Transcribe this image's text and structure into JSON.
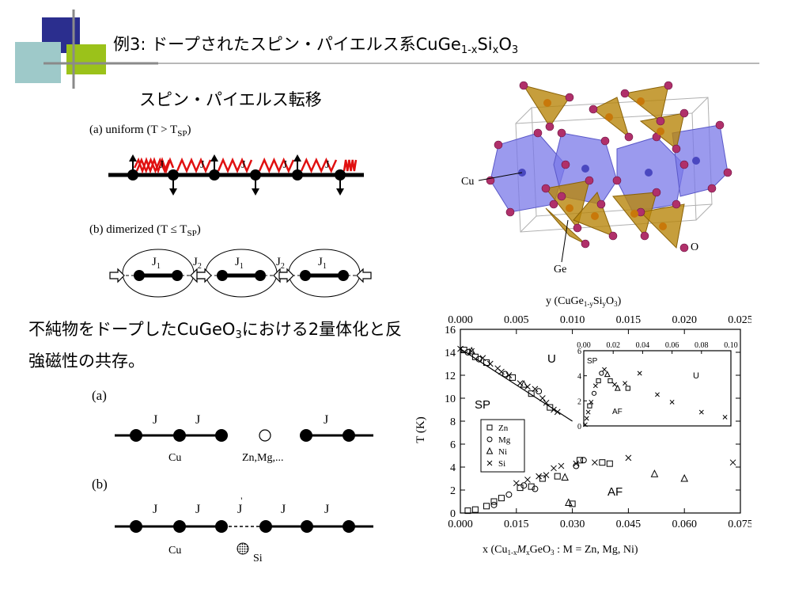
{
  "slide": {
    "title_main": "例3: ドープされたスピン・パイエルス系CuGe",
    "title_sub1": "1-x",
    "title_si": "Si",
    "title_sub2": "x",
    "title_o": "O",
    "title_sub3": "3",
    "subtitle": "スピン・パイエルス転移",
    "para_part1": "不純物をドープしたCuGeO",
    "para_sub": "3",
    "para_part2": "における2量体化と反強磁性の共存。",
    "accent_blue": "#2b2e8e",
    "accent_green": "#9bc21a",
    "accent_teal": "#9ec9c9"
  },
  "chain_diagram": {
    "panel_a_label": "(a) uniform (T > T",
    "panel_a_sub": "SP",
    "panel_a_close": ")",
    "panel_b_label": "(b) dimerized (T ≤ T",
    "panel_b_sub": "SP",
    "panel_b_close": ")",
    "j_label": "J",
    "j1": "J",
    "j1_sub": "1",
    "j2": "J",
    "j2_sub": "2"
  },
  "crystal": {
    "label_cu": "Cu",
    "label_ge": "Ge",
    "label_o": "O"
  },
  "impurity_diagram": {
    "panel_a": "(a)",
    "panel_b": "(b)",
    "j": "J",
    "j_prime": "J",
    "prime": "'",
    "cu": "Cu",
    "zn": "Zn,Mg,...",
    "si": "Si"
  },
  "chart_data": {
    "type": "scatter",
    "xlabel": "x (Cu",
    "xlabel_sub1": "1-x",
    "xlabel_m": "M",
    "xlabel_sub2": "x",
    "xlabel_rest": "GeO",
    "xlabel_sub3": "3",
    "xlabel_tail": " :  M = Zn, Mg, Ni)",
    "ylabel": "T (K)",
    "top_axis_label": "y  (CuGe",
    "top_axis_sub1": "1-y",
    "top_axis_si": "Si",
    "top_axis_sub2": "y",
    "top_axis_o": "O",
    "top_axis_sub3": "3",
    "top_axis_close": ")",
    "xlim": [
      0,
      0.075
    ],
    "ylim": [
      0,
      16
    ],
    "top_xlim": [
      0,
      0.025
    ],
    "x_ticks": [
      "0.000",
      "0.015",
      "0.030",
      "0.045",
      "0.060",
      "0.075"
    ],
    "y_ticks": [
      "0",
      "2",
      "4",
      "6",
      "8",
      "10",
      "12",
      "14",
      "16"
    ],
    "top_ticks": [
      "0.000",
      "0.005",
      "0.010",
      "0.015",
      "0.020",
      "0.025"
    ],
    "region_labels": [
      "U",
      "SP",
      "AF"
    ],
    "legend": [
      "Zn",
      "Mg",
      "Ni",
      "Si"
    ],
    "series": [
      {
        "name": "Zn",
        "marker": "square",
        "points": [
          [
            0.001,
            14.2
          ],
          [
            0.004,
            13.6
          ],
          [
            0.007,
            13.1
          ],
          [
            0.014,
            11.8
          ],
          [
            0.019,
            10.4
          ],
          [
            0.024,
            9.2
          ],
          [
            0.002,
            0.2
          ],
          [
            0.004,
            0.3
          ],
          [
            0.007,
            0.6
          ],
          [
            0.009,
            1.0
          ],
          [
            0.011,
            1.3
          ],
          [
            0.016,
            2.2
          ],
          [
            0.019,
            2.3
          ],
          [
            0.022,
            3.0
          ],
          [
            0.026,
            3.2
          ],
          [
            0.032,
            4.6
          ],
          [
            0.038,
            4.4
          ],
          [
            0.04,
            4.3
          ],
          [
            0.03,
            0.8
          ]
        ]
      },
      {
        "name": "Mg",
        "marker": "circle",
        "points": [
          [
            0.002,
            14.0
          ],
          [
            0.005,
            13.4
          ],
          [
            0.012,
            12.1
          ],
          [
            0.021,
            10.6
          ],
          [
            0.009,
            0.7
          ],
          [
            0.013,
            1.6
          ],
          [
            0.017,
            2.4
          ],
          [
            0.02,
            2.1
          ],
          [
            0.031,
            4.1
          ],
          [
            0.033,
            4.6
          ]
        ]
      },
      {
        "name": "Ni",
        "marker": "triangle",
        "points": [
          [
            0.029,
            0.9
          ],
          [
            0.028,
            3.1
          ],
          [
            0.052,
            3.4
          ],
          [
            0.06,
            3.0
          ],
          [
            0.003,
            14.1
          ],
          [
            0.017,
            11.2
          ]
        ]
      },
      {
        "name": "Si",
        "marker": "cross",
        "points": [
          [
            0.0,
            14.3
          ],
          [
            0.003,
            14.1
          ],
          [
            0.006,
            13.5
          ],
          [
            0.008,
            13.0
          ],
          [
            0.01,
            12.6
          ],
          [
            0.011,
            12.3
          ],
          [
            0.013,
            12.0
          ],
          [
            0.016,
            11.3
          ],
          [
            0.018,
            11.0
          ],
          [
            0.02,
            10.8
          ],
          [
            0.022,
            10.0
          ],
          [
            0.023,
            9.6
          ],
          [
            0.025,
            9.0
          ],
          [
            0.026,
            8.8
          ],
          [
            0.015,
            2.6
          ],
          [
            0.018,
            2.9
          ],
          [
            0.021,
            3.2
          ],
          [
            0.023,
            3.3
          ],
          [
            0.025,
            3.9
          ],
          [
            0.027,
            4.1
          ],
          [
            0.031,
            4.3
          ],
          [
            0.036,
            4.4
          ],
          [
            0.045,
            4.8
          ],
          [
            0.073,
            4.4
          ]
        ]
      }
    ],
    "sp_line": [
      [
        0.0,
        14.3
      ],
      [
        0.03,
        8.0
      ]
    ],
    "inset": {
      "xlim": [
        0,
        0.1
      ],
      "ylim": [
        0,
        6
      ],
      "x_ticks": [
        "0.00",
        "0.02",
        "0.04",
        "0.06",
        "0.08",
        "0.10"
      ],
      "y_ticks": [
        "0",
        "2",
        "4",
        "6"
      ],
      "region_labels": [
        "SP",
        "U",
        "AF"
      ],
      "points": [
        {
          "m": "cross",
          "x": 0.001,
          "y": 0.1
        },
        {
          "m": "cross",
          "x": 0.002,
          "y": 0.6
        },
        {
          "m": "cross",
          "x": 0.003,
          "y": 1.1
        },
        {
          "m": "square",
          "x": 0.004,
          "y": 1.6
        },
        {
          "m": "cross",
          "x": 0.005,
          "y": 1.9
        },
        {
          "m": "circle",
          "x": 0.007,
          "y": 2.6
        },
        {
          "m": "cross",
          "x": 0.008,
          "y": 3.2
        },
        {
          "m": "square",
          "x": 0.01,
          "y": 3.6
        },
        {
          "m": "circle",
          "x": 0.012,
          "y": 4.2
        },
        {
          "m": "cross",
          "x": 0.014,
          "y": 4.5
        },
        {
          "m": "triangle",
          "x": 0.016,
          "y": 4.1
        },
        {
          "m": "square",
          "x": 0.018,
          "y": 3.6
        },
        {
          "m": "cross",
          "x": 0.021,
          "y": 3.3
        },
        {
          "m": "triangle",
          "x": 0.023,
          "y": 3.0
        },
        {
          "m": "cross",
          "x": 0.028,
          "y": 3.4
        },
        {
          "m": "square",
          "x": 0.03,
          "y": 3.0
        },
        {
          "m": "cross",
          "x": 0.038,
          "y": 4.2
        },
        {
          "m": "cross",
          "x": 0.05,
          "y": 2.5
        },
        {
          "m": "cross",
          "x": 0.06,
          "y": 1.9
        },
        {
          "m": "cross",
          "x": 0.08,
          "y": 1.1
        },
        {
          "m": "cross",
          "x": 0.096,
          "y": 0.7
        }
      ]
    }
  }
}
